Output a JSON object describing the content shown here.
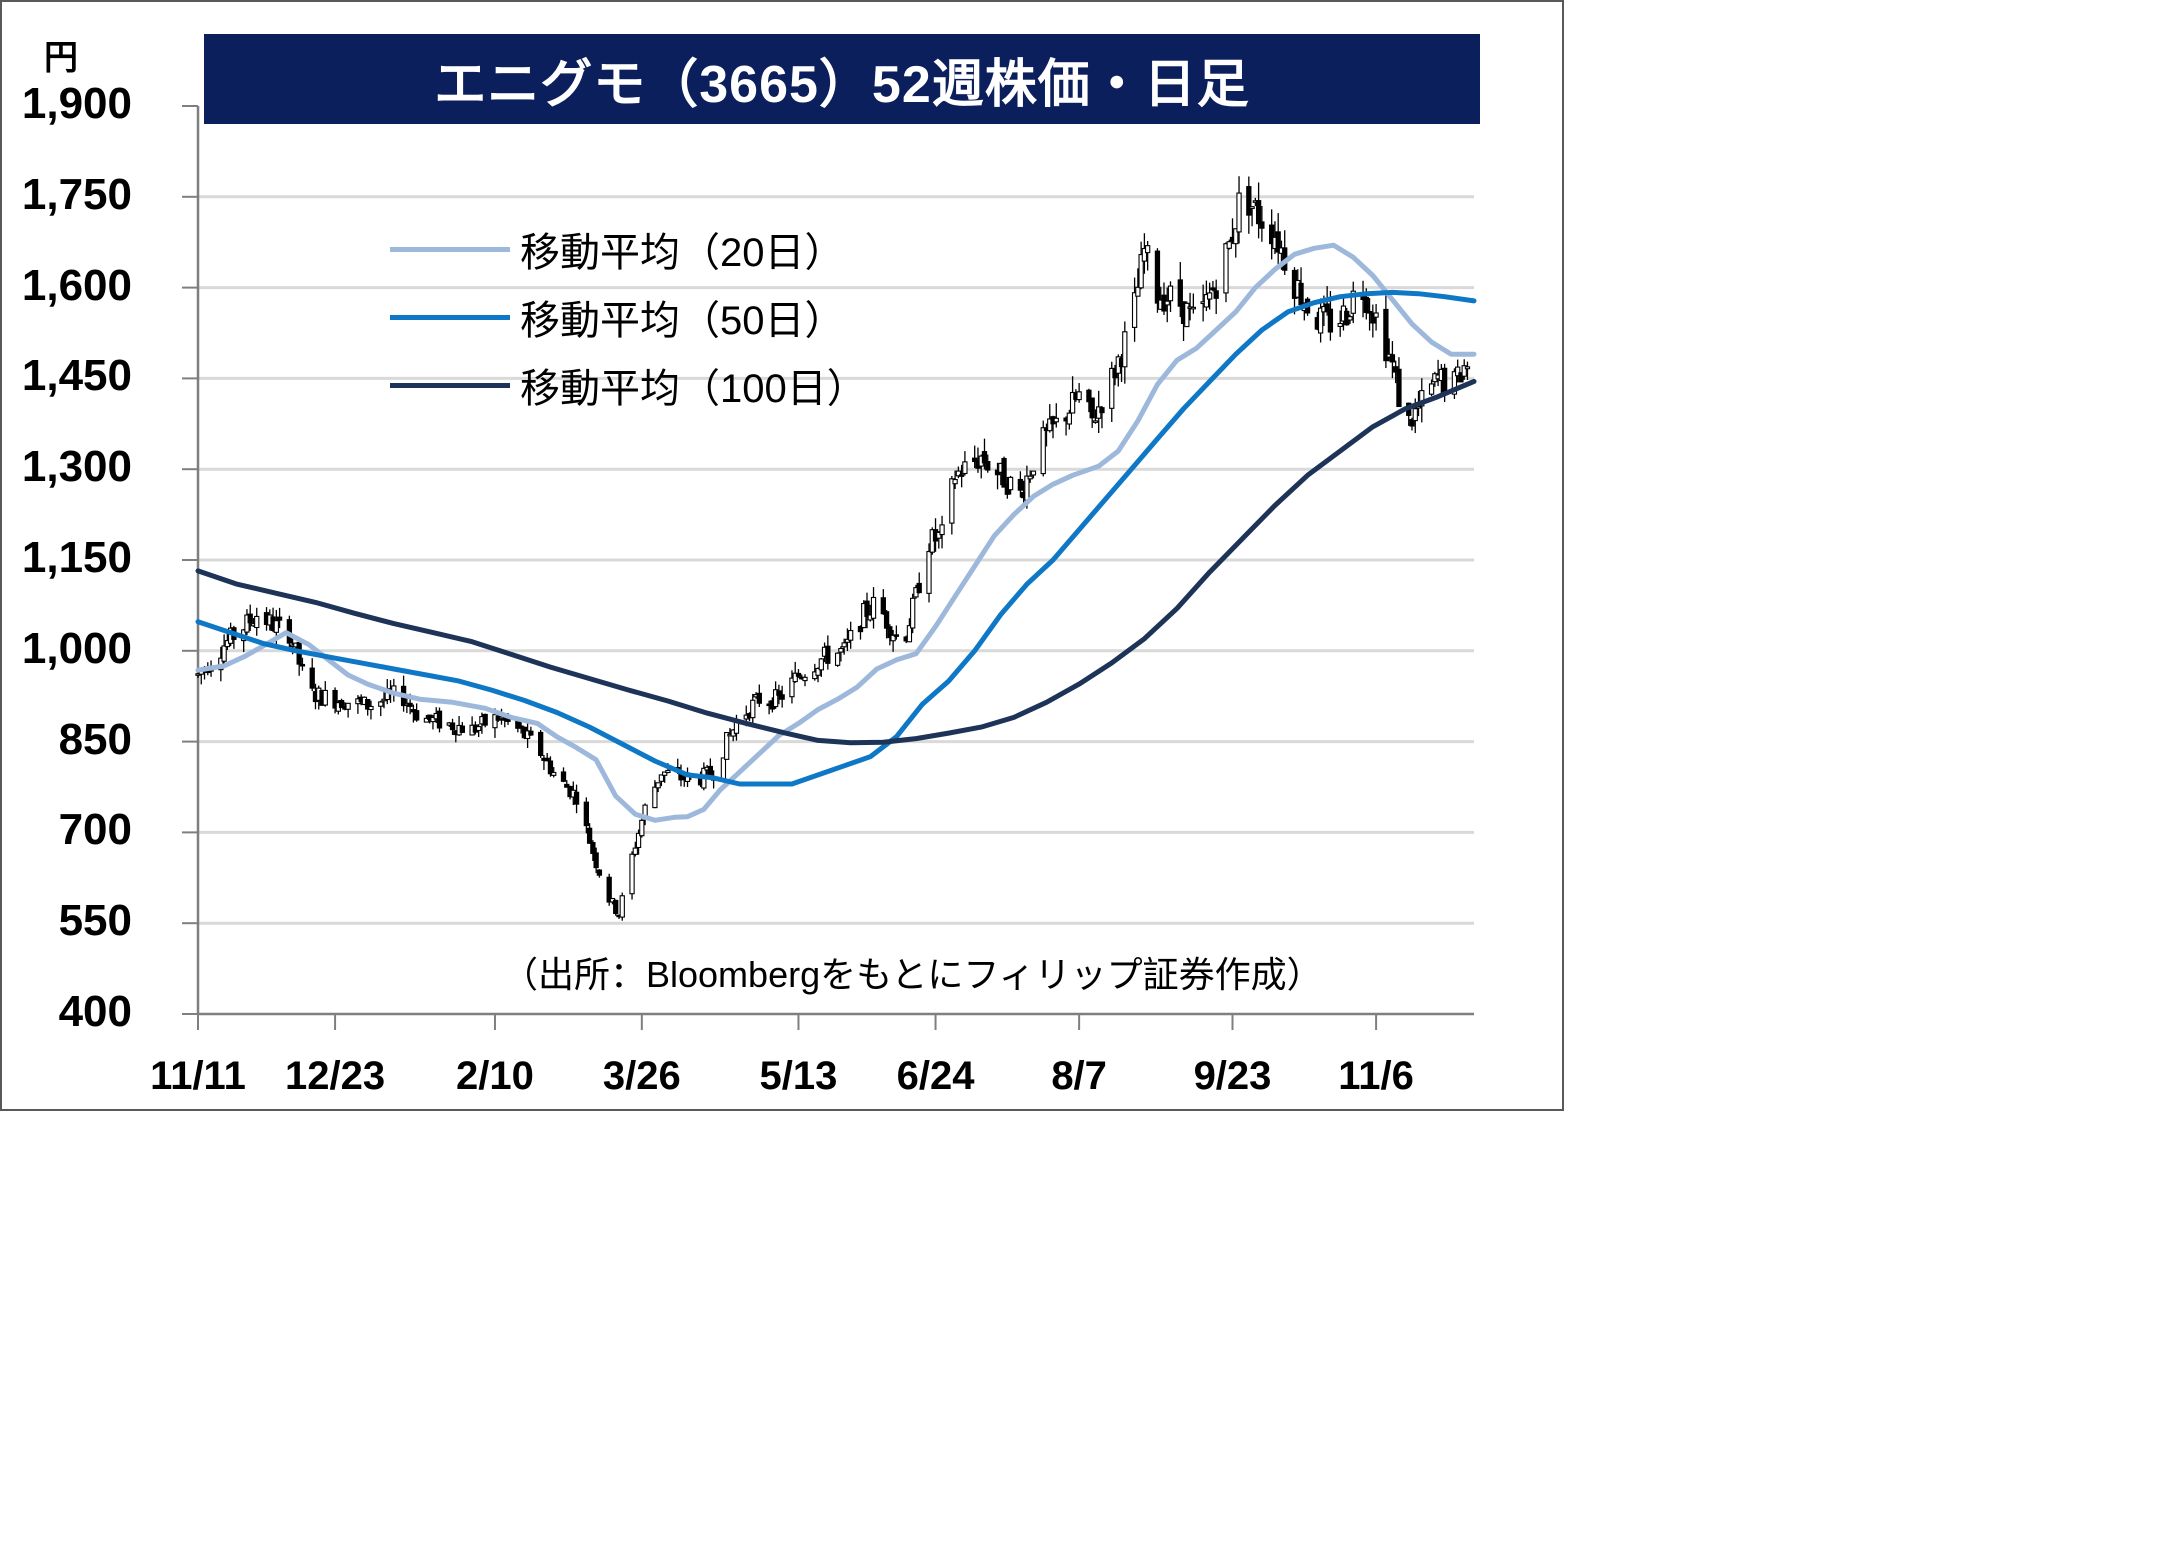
{
  "chart_data": {
    "type": "candlestick",
    "title": "エニグモ（3665）52週株価・日足",
    "unit": "円",
    "ylim": [
      400,
      1900
    ],
    "yticks": [
      "1,900",
      "1,750",
      "1,600",
      "1,450",
      "1,300",
      "1,150",
      "1,000",
      "850",
      "700",
      "550",
      "400"
    ],
    "ytick_values": [
      1900,
      1750,
      1600,
      1450,
      1300,
      1150,
      1000,
      850,
      700,
      550,
      400
    ],
    "xtick_labels": [
      "11/11",
      "12/23",
      "2/10",
      "3/26",
      "5/13",
      "6/24",
      "8/7",
      "9/23",
      "11/6"
    ],
    "xtick_days": [
      0,
      42,
      91,
      136,
      184,
      226,
      270,
      317,
      361
    ],
    "grid": "horizontal",
    "legend_position": "upper-left",
    "source": "（出所：Bloombergをもとにフィリップ証券作成）",
    "price_path": [
      [
        0,
        960
      ],
      [
        8,
        1010
      ],
      [
        14,
        1040
      ],
      [
        18,
        1060
      ],
      [
        24,
        1040
      ],
      [
        28,
        1030
      ],
      [
        34,
        930
      ],
      [
        42,
        920
      ],
      [
        52,
        910
      ],
      [
        62,
        930
      ],
      [
        68,
        890
      ],
      [
        76,
        880
      ],
      [
        84,
        870
      ],
      [
        92,
        890
      ],
      [
        98,
        870
      ],
      [
        104,
        840
      ],
      [
        110,
        790
      ],
      [
        116,
        760
      ],
      [
        122,
        650
      ],
      [
        126,
        590
      ],
      [
        129,
        565
      ],
      [
        133,
        660
      ],
      [
        137,
        740
      ],
      [
        142,
        800
      ],
      [
        148,
        790
      ],
      [
        154,
        790
      ],
      [
        158,
        800
      ],
      [
        162,
        850
      ],
      [
        166,
        890
      ],
      [
        172,
        920
      ],
      [
        178,
        920
      ],
      [
        184,
        960
      ],
      [
        192,
        990
      ],
      [
        198,
        1000
      ],
      [
        204,
        1060
      ],
      [
        208,
        1080
      ],
      [
        212,
        1040
      ],
      [
        216,
        1010
      ],
      [
        220,
        1090
      ],
      [
        224,
        1180
      ],
      [
        228,
        1190
      ],
      [
        232,
        1290
      ],
      [
        240,
        1320
      ],
      [
        246,
        1290
      ],
      [
        252,
        1260
      ],
      [
        258,
        1340
      ],
      [
        264,
        1380
      ],
      [
        270,
        1420
      ],
      [
        274,
        1380
      ],
      [
        280,
        1450
      ],
      [
        286,
        1540
      ],
      [
        290,
        1660
      ],
      [
        294,
        1590
      ],
      [
        300,
        1580
      ],
      [
        306,
        1540
      ],
      [
        312,
        1610
      ],
      [
        316,
        1670
      ],
      [
        320,
        1760
      ],
      [
        325,
        1720
      ],
      [
        330,
        1690
      ],
      [
        336,
        1610
      ],
      [
        342,
        1550
      ],
      [
        348,
        1540
      ],
      [
        352,
        1560
      ],
      [
        356,
        1610
      ],
      [
        362,
        1540
      ],
      [
        366,
        1470
      ],
      [
        370,
        1370
      ],
      [
        374,
        1400
      ],
      [
        380,
        1450
      ],
      [
        385,
        1440
      ],
      [
        388,
        1470
      ],
      [
        391,
        1480
      ]
    ],
    "total_days": 391,
    "series": [
      {
        "name": "移動平均（20日）",
        "color": "#9db8db",
        "values": [
          [
            0,
            968
          ],
          [
            8,
            975
          ],
          [
            14,
            990
          ],
          [
            20,
            1008
          ],
          [
            27,
            1030
          ],
          [
            34,
            1010
          ],
          [
            40,
            985
          ],
          [
            46,
            960
          ],
          [
            52,
            945
          ],
          [
            60,
            930
          ],
          [
            68,
            920
          ],
          [
            78,
            915
          ],
          [
            88,
            905
          ],
          [
            96,
            890
          ],
          [
            104,
            880
          ],
          [
            110,
            858
          ],
          [
            116,
            840
          ],
          [
            122,
            820
          ],
          [
            128,
            760
          ],
          [
            134,
            730
          ],
          [
            140,
            720
          ],
          [
            146,
            725
          ],
          [
            150,
            726
          ],
          [
            155,
            738
          ],
          [
            160,
            770
          ],
          [
            166,
            800
          ],
          [
            172,
            830
          ],
          [
            178,
            860
          ],
          [
            184,
            880
          ],
          [
            190,
            903
          ],
          [
            196,
            920
          ],
          [
            202,
            940
          ],
          [
            208,
            970
          ],
          [
            214,
            985
          ],
          [
            220,
            995
          ],
          [
            226,
            1040
          ],
          [
            232,
            1090
          ],
          [
            238,
            1140
          ],
          [
            244,
            1190
          ],
          [
            250,
            1225
          ],
          [
            256,
            1255
          ],
          [
            262,
            1275
          ],
          [
            268,
            1290
          ],
          [
            276,
            1305
          ],
          [
            282,
            1330
          ],
          [
            288,
            1380
          ],
          [
            294,
            1440
          ],
          [
            300,
            1480
          ],
          [
            306,
            1500
          ],
          [
            312,
            1530
          ],
          [
            318,
            1560
          ],
          [
            324,
            1600
          ],
          [
            330,
            1630
          ],
          [
            336,
            1655
          ],
          [
            342,
            1665
          ],
          [
            348,
            1670
          ],
          [
            354,
            1650
          ],
          [
            360,
            1620
          ],
          [
            366,
            1580
          ],
          [
            372,
            1540
          ],
          [
            378,
            1510
          ],
          [
            384,
            1490
          ],
          [
            391,
            1490
          ]
        ]
      },
      {
        "name": "移動平均（50日）",
        "color": "#0e78c6",
        "values": [
          [
            0,
            1048
          ],
          [
            10,
            1030
          ],
          [
            20,
            1012
          ],
          [
            30,
            1000
          ],
          [
            40,
            990
          ],
          [
            50,
            980
          ],
          [
            60,
            970
          ],
          [
            70,
            960
          ],
          [
            80,
            950
          ],
          [
            90,
            935
          ],
          [
            100,
            918
          ],
          [
            110,
            898
          ],
          [
            120,
            874
          ],
          [
            130,
            846
          ],
          [
            140,
            818
          ],
          [
            150,
            795
          ],
          [
            158,
            790
          ],
          [
            166,
            780
          ],
          [
            174,
            780
          ],
          [
            182,
            780
          ],
          [
            190,
            795
          ],
          [
            198,
            810
          ],
          [
            206,
            825
          ],
          [
            214,
            858
          ],
          [
            222,
            912
          ],
          [
            230,
            950
          ],
          [
            238,
            1000
          ],
          [
            246,
            1060
          ],
          [
            254,
            1110
          ],
          [
            262,
            1150
          ],
          [
            270,
            1200
          ],
          [
            278,
            1250
          ],
          [
            286,
            1300
          ],
          [
            294,
            1350
          ],
          [
            302,
            1400
          ],
          [
            310,
            1445
          ],
          [
            318,
            1490
          ],
          [
            326,
            1530
          ],
          [
            334,
            1560
          ],
          [
            342,
            1575
          ],
          [
            350,
            1585
          ],
          [
            358,
            1590
          ],
          [
            366,
            1592
          ],
          [
            374,
            1590
          ],
          [
            382,
            1585
          ],
          [
            391,
            1578
          ]
        ]
      },
      {
        "name": "移動平均（100日）",
        "color": "#1d3358",
        "values": [
          [
            0,
            1132
          ],
          [
            12,
            1110
          ],
          [
            24,
            1095
          ],
          [
            36,
            1080
          ],
          [
            48,
            1062
          ],
          [
            60,
            1045
          ],
          [
            72,
            1030
          ],
          [
            84,
            1015
          ],
          [
            96,
            994
          ],
          [
            108,
            973
          ],
          [
            120,
            954
          ],
          [
            132,
            935
          ],
          [
            144,
            917
          ],
          [
            156,
            897
          ],
          [
            168,
            880
          ],
          [
            180,
            864
          ],
          [
            190,
            852
          ],
          [
            200,
            848
          ],
          [
            210,
            849
          ],
          [
            220,
            855
          ],
          [
            230,
            864
          ],
          [
            240,
            874
          ],
          [
            250,
            890
          ],
          [
            260,
            915
          ],
          [
            270,
            945
          ],
          [
            280,
            980
          ],
          [
            290,
            1020
          ],
          [
            300,
            1070
          ],
          [
            310,
            1130
          ],
          [
            320,
            1185
          ],
          [
            330,
            1240
          ],
          [
            340,
            1290
          ],
          [
            350,
            1330
          ],
          [
            360,
            1370
          ],
          [
            370,
            1400
          ],
          [
            380,
            1420
          ],
          [
            391,
            1445
          ]
        ]
      }
    ]
  },
  "title_text": "エニグモ（3665）52週株価・日足",
  "legend": [
    {
      "label": "移動平均（20日）",
      "color": "#9db8db"
    },
    {
      "label": "移動平均（50日）",
      "color": "#0e78c6"
    },
    {
      "label": "移動平均（100日）",
      "color": "#1d3358"
    }
  ],
  "source_text": "（出所：Bloombergをもとにフィリップ証券作成）",
  "colors": {
    "title_bg": "#0b1f5c",
    "grid": "#d9d9d9",
    "axis": "#7f7f7f"
  }
}
